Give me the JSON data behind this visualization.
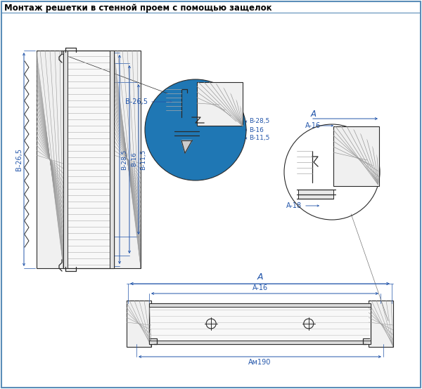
{
  "title": "Монтаж решетки в стенной проем с помощью защелок",
  "bg_color": "#ffffff",
  "border_color": "#5b8db8",
  "dim_color": "#2255aa",
  "line_color": "#2a2a2a",
  "title_fontsize": 8.5,
  "dim_fontsize": 7,
  "labels": {
    "B_26_5": "B-26,5",
    "B_28_5": "B-28,5",
    "B_16": "B-16",
    "B_11_5": "B-11,5",
    "A": "A",
    "A_16": "A-16",
    "A_18": "A-18",
    "A_m190": "Aм190"
  }
}
